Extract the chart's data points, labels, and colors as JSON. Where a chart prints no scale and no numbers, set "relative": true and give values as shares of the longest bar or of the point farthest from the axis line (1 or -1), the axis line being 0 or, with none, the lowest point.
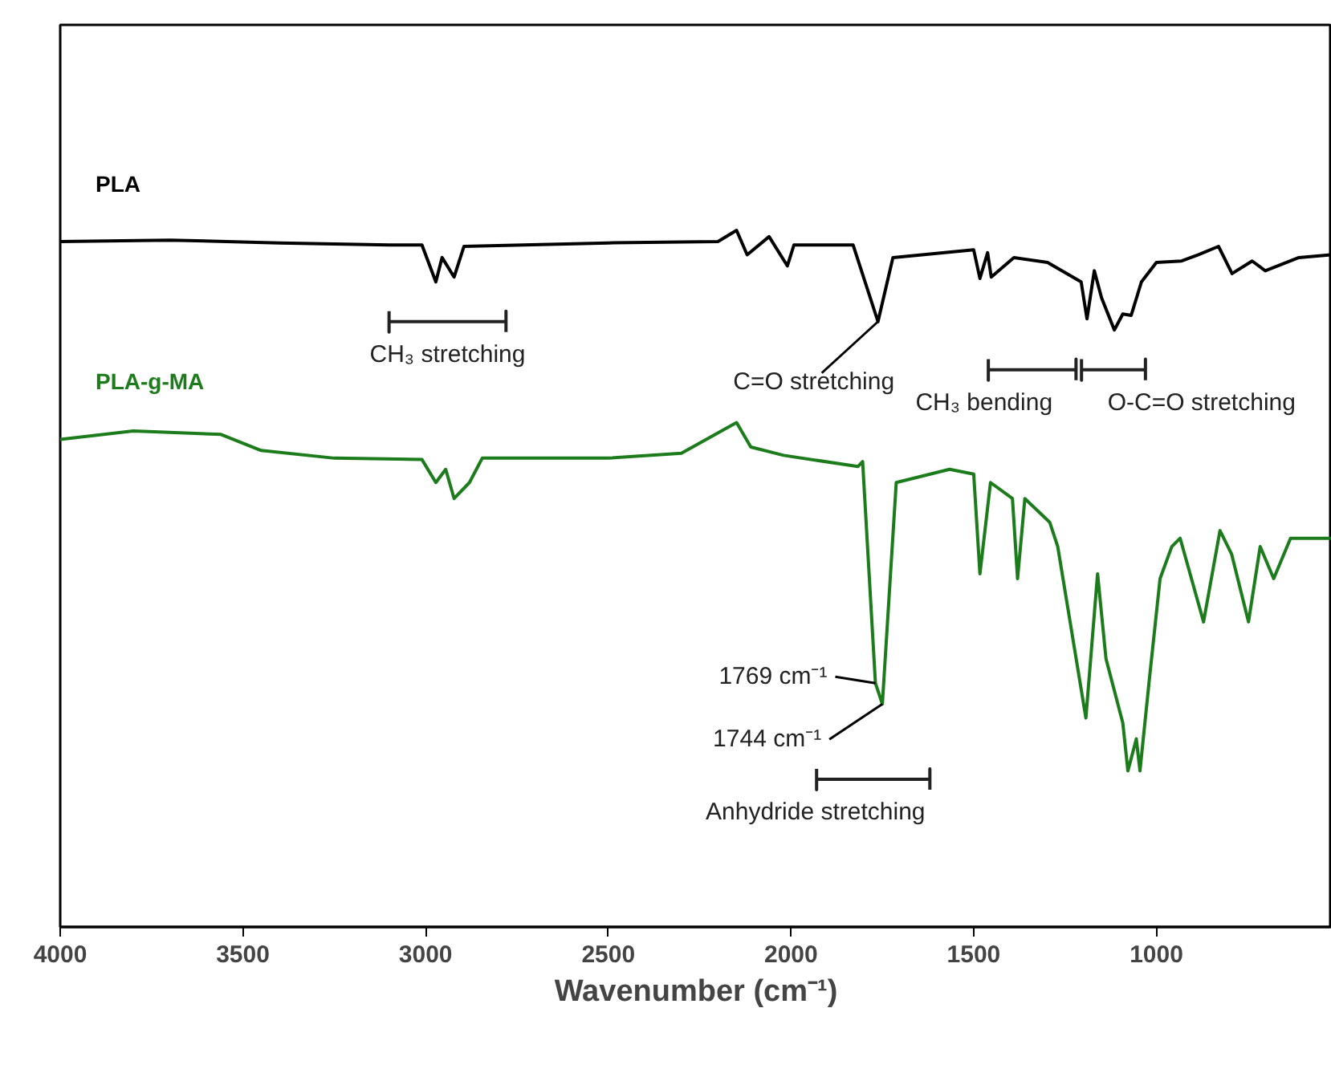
{
  "chart_data": {
    "type": "line",
    "relative": true,
    "xlabel": "Wavenumber (cm⁻¹)",
    "xlim": [
      4000,
      520
    ],
    "xticks": [
      4000,
      3500,
      3000,
      2500,
      2000,
      1500,
      1000
    ],
    "grid": false,
    "series": [
      {
        "name": "PLA",
        "color": "#000000",
        "x": [
          4000,
          3700,
          3400,
          3100,
          3010,
          2972,
          2955,
          2922,
          2895,
          2500,
          2200,
          2149,
          2120,
          2060,
          2010,
          1992,
          1830,
          1762,
          1721,
          1500,
          1483,
          1462,
          1452,
          1390,
          1298,
          1206,
          1190,
          1170,
          1150,
          1115,
          1092,
          1069,
          1041,
          1000,
          931,
          885,
          830,
          793,
          738,
          702,
          610,
          523
        ],
        "values": [
          0.984,
          0.986,
          0.982,
          0.979,
          0.979,
          0.926,
          0.961,
          0.933,
          0.977,
          0.982,
          0.984,
          1.0,
          0.965,
          0.991,
          0.949,
          0.979,
          0.979,
          0.869,
          0.961,
          0.972,
          0.931,
          0.968,
          0.933,
          0.961,
          0.954,
          0.926,
          0.873,
          0.942,
          0.903,
          0.857,
          0.88,
          0.878,
          0.926,
          0.954,
          0.956,
          0.965,
          0.977,
          0.938,
          0.956,
          0.942,
          0.961,
          0.965
        ]
      },
      {
        "name": "PLA-g-MA",
        "color": "#1c7c1c",
        "x": [
          4000,
          3800,
          3560,
          3450,
          3250,
          3010,
          2972,
          2945,
          2922,
          2880,
          2845,
          2500,
          2300,
          2149,
          2110,
          2020,
          1817,
          1804,
          1769,
          1750,
          1712,
          1566,
          1500,
          1483,
          1454,
          1394,
          1380,
          1360,
          1292,
          1270,
          1193,
          1161,
          1138,
          1115,
          1092,
          1078,
          1055,
          1045,
          1018,
          990,
          958,
          935,
          871,
          826,
          794,
          748,
          716,
          679,
          633,
          523
        ],
        "values": [
          0.7,
          0.712,
          0.707,
          0.684,
          0.673,
          0.671,
          0.638,
          0.657,
          0.615,
          0.638,
          0.673,
          0.673,
          0.68,
          0.724,
          0.689,
          0.677,
          0.661,
          0.668,
          0.35,
          0.32,
          0.638,
          0.657,
          0.65,
          0.507,
          0.638,
          0.615,
          0.5,
          0.615,
          0.581,
          0.546,
          0.3,
          0.507,
          0.385,
          0.339,
          0.293,
          0.224,
          0.27,
          0.224,
          0.362,
          0.5,
          0.546,
          0.558,
          0.438,
          0.569,
          0.535,
          0.438,
          0.546,
          0.5,
          0.558,
          0.558
        ]
      },
      {
        "color": "#222222",
        "x": [
          3100,
          3100,
          3100,
          2780,
          2780,
          2780
        ],
        "values": [
          0.884,
          0.854,
          0.869,
          0.869,
          0.884,
          0.854
        ]
      },
      {
        "color": "#222222",
        "x": [
          1460,
          1460,
          1460,
          1220,
          1220,
          1220
        ],
        "values": [
          0.815,
          0.785,
          0.8,
          0.8,
          0.815,
          0.785
        ]
      },
      {
        "color": "#222222",
        "x": [
          1205,
          1205,
          1205,
          1030,
          1030,
          1030
        ],
        "values": [
          0.815,
          0.785,
          0.8,
          0.8,
          0.815,
          0.785
        ]
      },
      {
        "color": "#222222",
        "x": [
          1930,
          1930,
          1930,
          1620,
          1620,
          1620
        ],
        "values": [
          0.227,
          0.197,
          0.212,
          0.212,
          0.227,
          0.197
        ]
      }
    ],
    "annotations": [
      {
        "text": "C=O stretching",
        "x": 1762,
        "y": 0.869
      },
      {
        "text": "1769 cm⁻¹",
        "x": 1769,
        "y": 0.35
      },
      {
        "text": "1744 cm⁻¹",
        "x": 1750,
        "y": 0.32
      },
      {
        "text": "CH₃ stretching",
        "x": 2940,
        "y": 0.869
      },
      {
        "text": "CH₃ bending",
        "x": 1340,
        "y": 0.8
      },
      {
        "text": "O-C=O stretching",
        "x": 1118,
        "y": 0.8
      },
      {
        "text": "Anhydride stretching",
        "x": 1775,
        "y": 0.212
      }
    ]
  }
}
